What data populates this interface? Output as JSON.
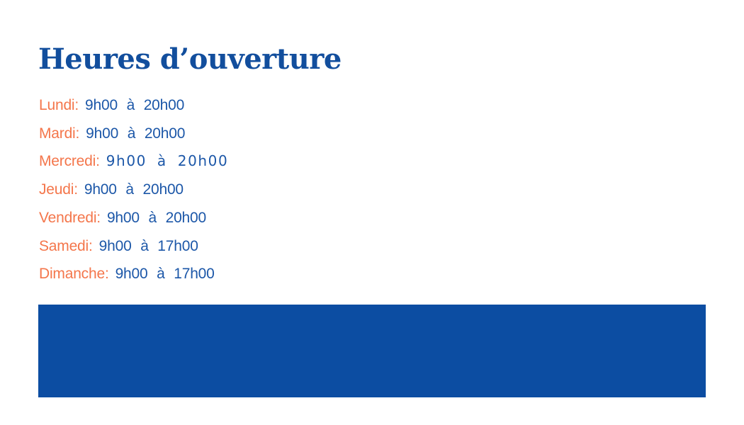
{
  "title": "Heures d’ouverture",
  "colors": {
    "title_blue": "#124E9D",
    "time_blue": "#1C57A8",
    "day_orange": "#F4764B",
    "banner_blue": "#0C4DA2"
  },
  "hours": [
    {
      "day": "Lundi:",
      "time": "9h00 à 20h00"
    },
    {
      "day": "Mardi:",
      "time": "9h00 à 20h00"
    },
    {
      "day": "Mercredi:",
      "time": "9h00 à 20h00"
    },
    {
      "day": "Jeudi:",
      "time": "9h00 à 20h00"
    },
    {
      "day": "Vendredi:",
      "time": "9h00 à 20h00"
    },
    {
      "day": "Samedi:",
      "time": "9h00 à 17h00"
    },
    {
      "day": "Dimanche:",
      "time": "9h00 à 17h00"
    }
  ]
}
